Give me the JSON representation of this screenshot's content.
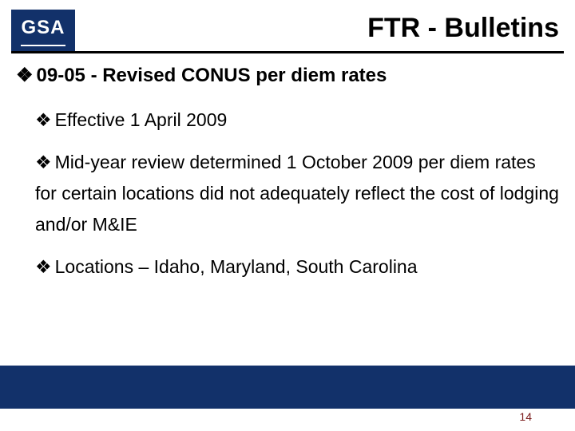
{
  "logo": {
    "text": "GSA"
  },
  "title": "FTR - Bulletins",
  "bullet_glyph": "❖",
  "colors": {
    "brand_navy": "#12316a",
    "text_black": "#000000",
    "page_num": "#7a1a1a",
    "background": "#ffffff"
  },
  "content": {
    "heading": "09-05 - Revised CONUS per diem rates",
    "items": [
      "Effective 1 April 2009",
      "Mid-year review determined 1 October 2009 per diem rates for certain locations did not adequately reflect the cost of lodging and/or M&IE",
      "Locations – Idaho, Maryland, South Carolina"
    ]
  },
  "page_number": "14"
}
